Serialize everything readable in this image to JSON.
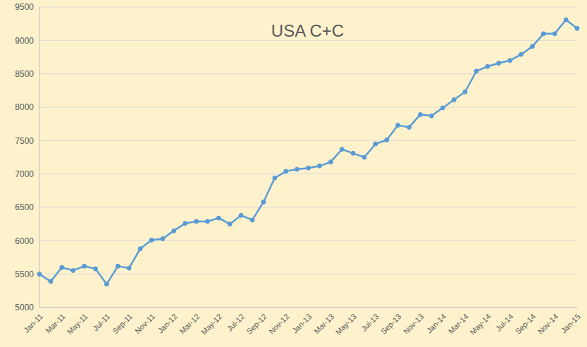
{
  "chart_data": {
    "type": "line",
    "title": "USA C+C",
    "categories": [
      "Jan-11",
      null,
      "Mar-11",
      null,
      "May-11",
      null,
      "Jul-11",
      null,
      "Sep-11",
      null,
      "Nov-11",
      null,
      "Jan-12",
      null,
      "Mar-12",
      null,
      "May-12",
      null,
      "Jul-12",
      null,
      "Sep-12",
      null,
      "Nov-12",
      null,
      "Jan-13",
      null,
      "Mar-13",
      null,
      "May-13",
      null,
      "Jul-13",
      null,
      "Sep-13",
      null,
      "Nov-13",
      null,
      "Jan-14",
      null,
      "Mar-14",
      null,
      "May-14",
      null,
      "Jul-14",
      null,
      "Sep-14",
      null,
      "Nov-14",
      null,
      "Jan-15"
    ],
    "values": [
      5500,
      5390,
      5600,
      5555,
      5620,
      5580,
      5350,
      5620,
      5590,
      5880,
      6010,
      6030,
      6150,
      6260,
      6290,
      6290,
      6340,
      6250,
      6380,
      6310,
      6580,
      6940,
      7040,
      7070,
      7090,
      7120,
      7180,
      7370,
      7310,
      7250,
      7450,
      7510,
      7730,
      7700,
      7890,
      7870,
      7990,
      8110,
      8230,
      8540,
      8610,
      8660,
      8700,
      8790,
      8910,
      9100,
      9100,
      9310,
      9180
    ],
    "color": "#5b9bd5",
    "marker": "circle",
    "ylim": [
      5000,
      9500
    ],
    "yticks": [
      5000,
      5500,
      6000,
      6500,
      7000,
      7500,
      8000,
      8500,
      9000,
      9500
    ],
    "grid": true
  }
}
